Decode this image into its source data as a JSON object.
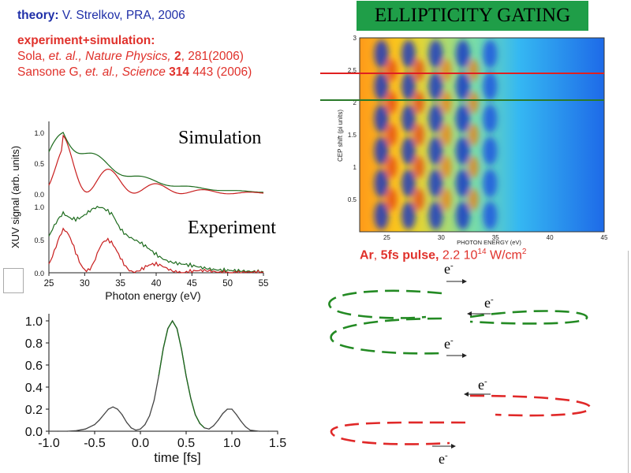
{
  "theory": {
    "label": "theory:",
    "text": " V. Strelkov, PRA, 2006"
  },
  "experiment": {
    "label": "experiment+simulation:",
    "ref1": {
      "authors": "Sola, ",
      "etal": "et. al., Nature Physics, ",
      "vol": "2",
      "rest": ", 281(2006)"
    },
    "ref2": {
      "authors": "Sansone G, ",
      "etal": "et. al., Science ",
      "vol": "314",
      "rest": " 443 (2006)"
    }
  },
  "title_box": {
    "text": "ELLIPTICITY GATING",
    "bg": "#1f9e48"
  },
  "spectra": {
    "simulation_label": "Simulation",
    "experiment_label": "Experiment",
    "ylabel": "XUV signal (arb. units)",
    "xlabel": "Photon energy (eV)",
    "xticks": [
      "25",
      "30",
      "35",
      "40",
      "45",
      "50",
      "55"
    ],
    "yticks_top": [
      "1.0",
      "0.5",
      "0.0"
    ],
    "yticks_bottom": [
      "1.0",
      "0.5",
      "0.0"
    ],
    "colors": {
      "green": "#1d6b1d",
      "red": "#c81e1e"
    }
  },
  "heatmap": {
    "ylabel": "CEP shift (pi units)",
    "xlabel": "PHOTON ENERGY (eV)",
    "xticks": [
      "25",
      "30",
      "35",
      "40",
      "45"
    ],
    "yticks": [
      "3",
      "2.5",
      "2",
      "1.5",
      "1",
      "0.5"
    ],
    "line_colors": {
      "red": "#e02020",
      "green": "#2a7a2a"
    }
  },
  "pulse_caption": {
    "atom": "Ar",
    "sep": ", ",
    "pulse": "5fs pulse,",
    "intensity": " 2.2 10",
    "exp": "14",
    "unit": " W/cm",
    "unit_exp": "2"
  },
  "electron_label": "e",
  "electron_sup": "-",
  "chart_data": {
    "type": "line",
    "xlabel": "time [fs]",
    "ylabel": "",
    "title": "",
    "xlim": [
      -1.0,
      1.5
    ],
    "ylim": [
      0.0,
      1.0
    ],
    "xticks": [
      "-1.0",
      "-0.5",
      "0.0",
      "0.5",
      "1.0",
      "1.5"
    ],
    "yticks": [
      "0.0",
      "0.2",
      "0.4",
      "0.6",
      "0.8",
      "1.0"
    ],
    "series": [
      {
        "color": "#444444",
        "x": [
          -1.0,
          -0.9,
          -0.8,
          -0.7,
          -0.6,
          -0.5,
          -0.45,
          -0.4,
          -0.35,
          -0.3,
          -0.25,
          -0.2,
          -0.15,
          -0.1,
          -0.05,
          0.0,
          0.05,
          0.1,
          0.15,
          0.2,
          0.25,
          0.3,
          0.35,
          0.4,
          0.45,
          0.5,
          0.55,
          0.6,
          0.65,
          0.7,
          0.75,
          0.8,
          0.85,
          0.9,
          0.95,
          1.0,
          1.05,
          1.1,
          1.15,
          1.2,
          1.3,
          1.4,
          1.5
        ],
        "y": [
          0.0,
          0.0,
          0.0,
          0.005,
          0.02,
          0.06,
          0.1,
          0.15,
          0.2,
          0.22,
          0.2,
          0.15,
          0.08,
          0.03,
          0.01,
          0.02,
          0.06,
          0.14,
          0.28,
          0.5,
          0.75,
          0.93,
          1.0,
          0.93,
          0.74,
          0.5,
          0.3,
          0.15,
          0.07,
          0.03,
          0.02,
          0.05,
          0.1,
          0.16,
          0.2,
          0.2,
          0.15,
          0.09,
          0.04,
          0.01,
          0.0,
          0.0,
          0.0
        ]
      }
    ]
  }
}
